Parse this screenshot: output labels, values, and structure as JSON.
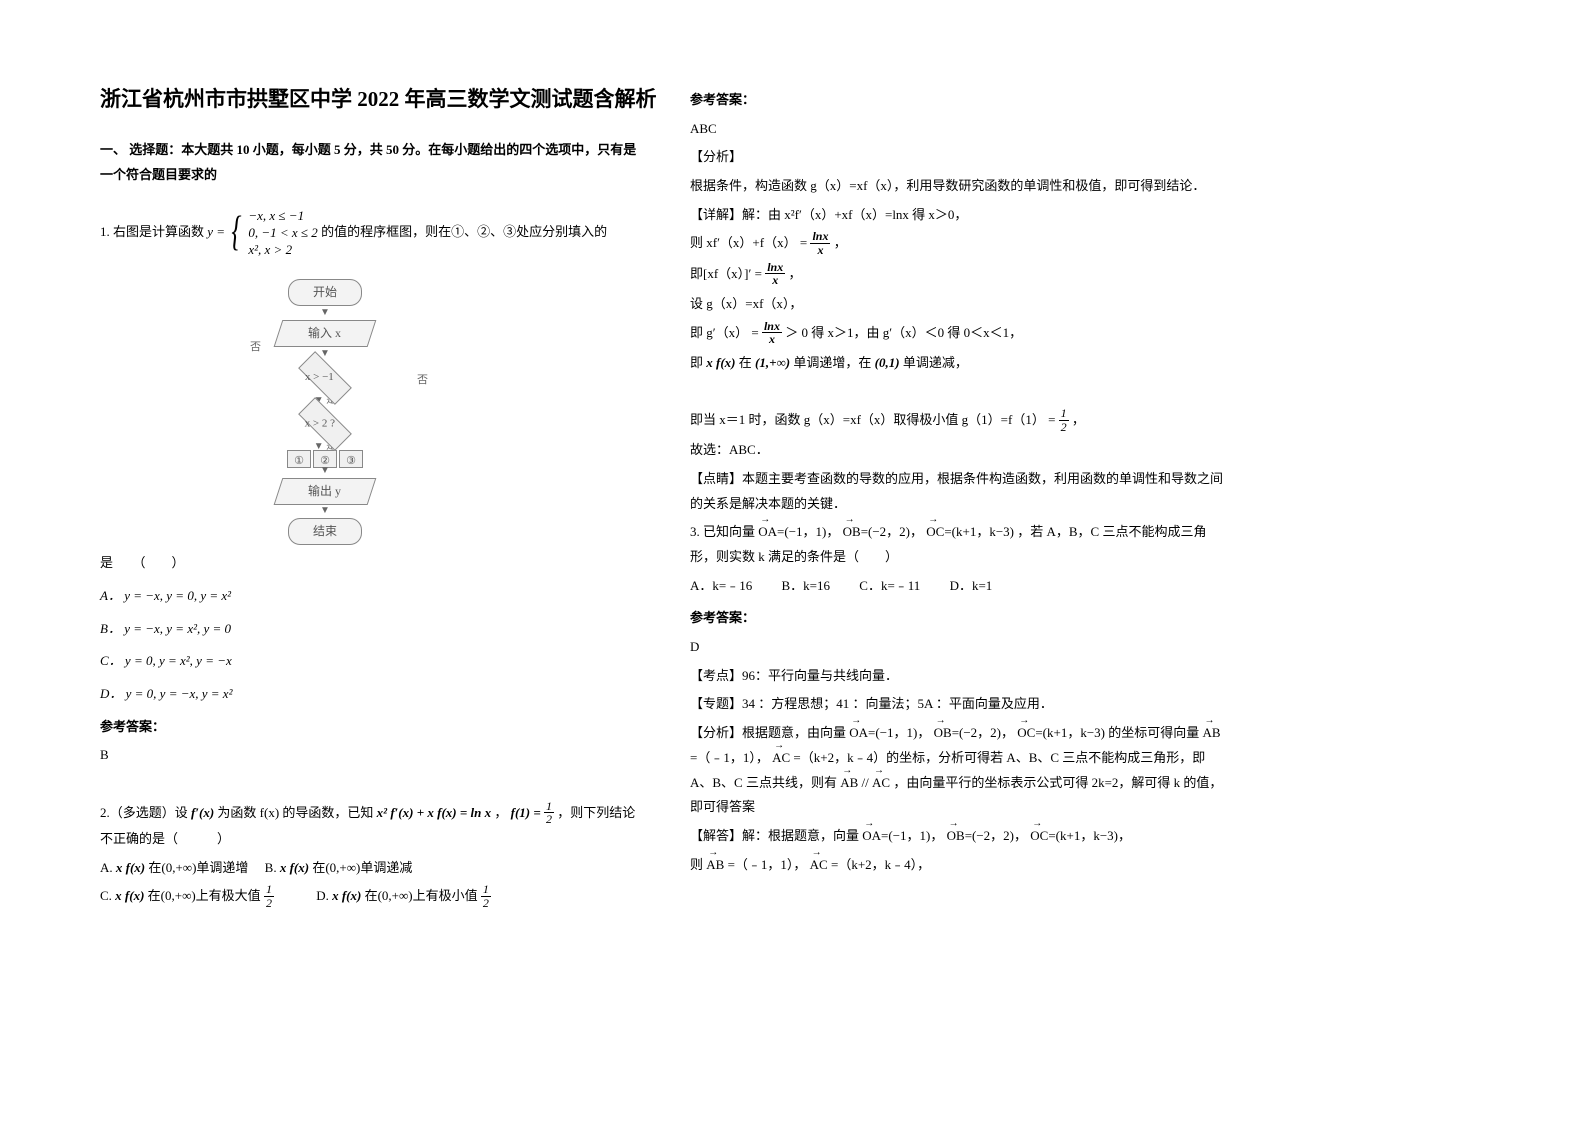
{
  "title": "浙江省杭州市市拱墅区中学 2022 年高三数学文测试题含解析",
  "section_head": "一、 选择题：本大题共 10 小题，每小题 5 分，共 50 分。在每小题给出的四个选项中，只有是一个符合题目要求的",
  "q1": {
    "prefix": "1. 右图是计算函数",
    "piecewise_y": "y =",
    "pw1": "−x, x ≤ −1",
    "pw2": "0, −1 < x ≤ 2",
    "pw3": "x², x > 2",
    "suffix": "的值的程序框图，则在①、②、③处应分别填入的",
    "tail": "是　　（　　）",
    "A": "A．  y = −x, y = 0, y = x²",
    "B": "B．  y = −x, y = x², y = 0",
    "C": "C．  y = 0, y = x², y = −x",
    "D": "D．  y = 0, y = −x, y = x²",
    "ans_head": "参考答案：",
    "ans": "B"
  },
  "flowchart": {
    "start": "开始",
    "input": "输入 x",
    "d1": "x > −1",
    "d2": "x > 2 ?",
    "yes": "是",
    "no": "否",
    "c1": "①",
    "c2": "②",
    "c3": "③",
    "output": "输出 y",
    "end": "结束"
  },
  "q2": {
    "text_a": "2.（多选题）设",
    "fprime": "f′(x)",
    "text_b": "为函数 f(x) 的导函数，已知",
    "eq": "x² f′(x) + x f(x) = ln x",
    "comma": "，",
    "f1": "f(1) = ",
    "half_num": "1",
    "half_den": "2",
    "text_c": "，则下列结论不正确的是（　　　）",
    "A_pre": "A. ",
    "xfx": "x f(x)",
    "A_post": " 在(0,+∞)单调递增　  B. ",
    "B_post": " 在(0,+∞)单调递减",
    "C_pre": "C. ",
    "C_post": " 在(0,+∞)上有极大值 ",
    "D_pre": "　　　D. ",
    "D_post": " 在(0,+∞)上有极小值 "
  },
  "right": {
    "ans_head": "参考答案：",
    "ans": "ABC",
    "fenxi_h": "【分析】",
    "fenxi": "根据条件，构造函数 g（x）=xf（x），利用导数研究函数的单调性和极值，即可得到结论．",
    "xiangjie_h": "【详解】解：由 x²f′（x）+xf（x）=lnx 得 x＞0，",
    "line1a": "则 xf′（x）+f（x）",
    "eqfrac1n": "lnx",
    "eqfrac1d": "x",
    "line2a": "即[xf（x）]′",
    "line3": "设 g（x）=xf（x），",
    "line4a": "即 g′（x）",
    "gt": "＞",
    "line4b": " 0 得 x＞1，由 g′（x）＜0 得 0＜x＜1，",
    "line5a": "即 ",
    "line5b": " 在",
    "int1": "(1,+∞)",
    "line5c": " 单调递增，在 ",
    "int2": "(0,1)",
    "line5d": " 单调递减，",
    "line6a": "即当 x＝1 时，函数 g（x）=xf（x）取得极小值 g（1）=f（1）",
    "line7": "故选：ABC．",
    "dianjing_h": "【点睛】本题主要考查函数的导数的应用，根据条件构造函数，利用函数的单调性和导数之间的关系是解决本题的关键．"
  },
  "q3": {
    "text_a": "3. 已知向量 ",
    "OA": "OA",
    "OAval": "=(−1，1)，",
    "OB": "OB",
    "OBval": "=(−2，2)，",
    "OC": "OC",
    "OCval": "=(k+1，k−3)",
    "text_b": "，若 A，B，C 三点不能构成三角形，则实数 k 满足的条件是（　　）",
    "A": "A．k=﹣16",
    "B": "B．k=16",
    "C": "C．k=﹣11",
    "D": "D．k=1",
    "ans_head": "参考答案：",
    "ans": "D",
    "kaodian": "【考点】96：平行向量与共线向量．",
    "zhuanti": "【专题】34 ：方程思想；41 ：向量法；5A ：平面向量及应用．",
    "fenxi_a": "【分析】根据题意，由向量",
    "fenxi_b": "的坐标可得向量",
    "AB": "AB",
    "fenxi_c": "=（﹣1，1），",
    "AC": "AC",
    "fenxi_d": "=（k+2，k﹣4）的坐标，分析可得若 A、B、C 三点不能构成三角形，即 A、B、C 三点共线，则有",
    "ABpar": " // ",
    "fenxi_e": "，由向量平行的坐标表示公式可得 2k=2，解可得 k 的值，即可得答案",
    "jieda_a": "【解答】解：根据题意，向量",
    "jieda_b": "=（﹣1，1），",
    "jieda_c": "=（k+2，k﹣4），",
    "ze": "则"
  }
}
